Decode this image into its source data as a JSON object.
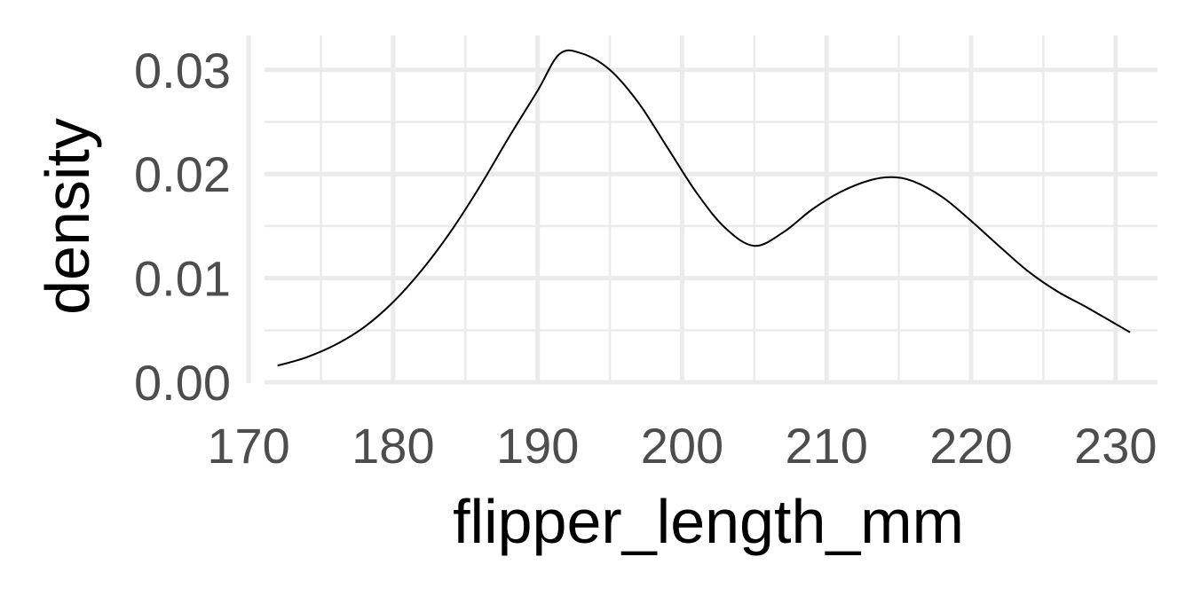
{
  "chart_data": {
    "type": "line",
    "title": "",
    "xlabel": "flipper_length_mm",
    "ylabel": "density",
    "xlim": [
      171.1,
      232.9
    ],
    "ylim": [
      -8e-05,
      0.0333
    ],
    "x_ticks": [
      170,
      180,
      190,
      200,
      210,
      220,
      230
    ],
    "x_tick_labels": [
      "170",
      "180",
      "190",
      "200",
      "210",
      "220",
      "230"
    ],
    "y_ticks": [
      0.0,
      0.01,
      0.02,
      0.03
    ],
    "y_tick_labels": [
      "0.00",
      "0.01",
      "0.02",
      "0.03"
    ],
    "grid": true,
    "series": [
      {
        "color": "#000000",
        "x": [
          172,
          174,
          176,
          178,
          180,
          182,
          184,
          186,
          188,
          190,
          191.5,
          193,
          195,
          197,
          199,
          201,
          203,
          205,
          207,
          209,
          211,
          213,
          214.5,
          216,
          218,
          220,
          222,
          224,
          226,
          228,
          231
        ],
        "y": [
          0.0016,
          0.0024,
          0.0036,
          0.0053,
          0.0077,
          0.0108,
          0.0145,
          0.0188,
          0.0235,
          0.028,
          0.0315,
          0.0316,
          0.03,
          0.0268,
          0.0225,
          0.0182,
          0.0148,
          0.0131,
          0.0144,
          0.0166,
          0.0183,
          0.0194,
          0.0197,
          0.0193,
          0.0178,
          0.0155,
          0.013,
          0.0106,
          0.0087,
          0.0072,
          0.0048
        ]
      }
    ]
  }
}
